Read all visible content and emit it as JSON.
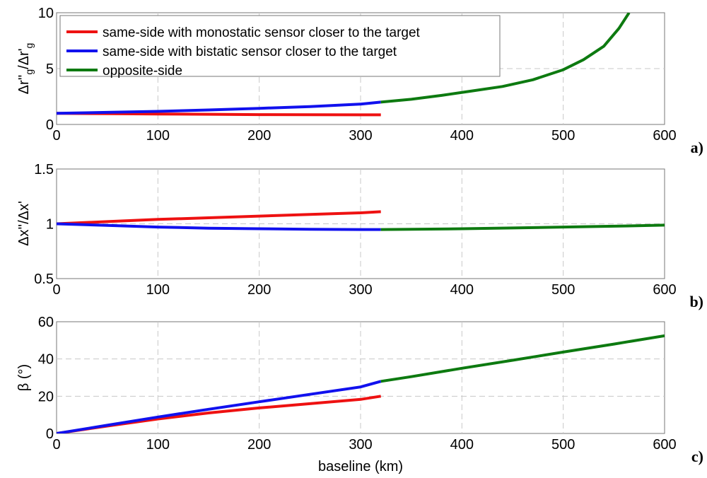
{
  "chart_data": [
    {
      "type": "line",
      "panel_label": "a)",
      "ylabel_parts": [
        "Δr''",
        "g",
        "/Δr'",
        "g"
      ],
      "xlim": [
        0,
        600
      ],
      "ylim": [
        0,
        10
      ],
      "xticks": [
        "0",
        "100",
        "200",
        "300",
        "400",
        "500",
        "600"
      ],
      "yticks": [
        "0",
        "5",
        "10"
      ],
      "grid": true,
      "legend": {
        "placement": "top-left",
        "entries": [
          {
            "label": "same-side with monostatic sensor closer to the target",
            "color": "#ee1111"
          },
          {
            "label": "same-side with bistatic sensor closer to the target",
            "color": "#1111ee"
          },
          {
            "label": "opposite-side",
            "color": "#0d7a10"
          }
        ]
      },
      "series": [
        {
          "name": "same-side with monostatic sensor closer to the target",
          "color": "#ee1111",
          "x": [
            0,
            50,
            100,
            150,
            200,
            250,
            300,
            320
          ],
          "y": [
            1.0,
            0.96,
            0.93,
            0.91,
            0.88,
            0.87,
            0.86,
            0.86
          ]
        },
        {
          "name": "same-side with bistatic sensor closer to the target",
          "color": "#1111ee",
          "x": [
            0,
            50,
            100,
            150,
            200,
            250,
            300,
            320
          ],
          "y": [
            1.0,
            1.08,
            1.17,
            1.3,
            1.44,
            1.6,
            1.82,
            2.0
          ]
        },
        {
          "name": "opposite-side",
          "color": "#0d7a10",
          "x": [
            320,
            350,
            380,
            410,
            440,
            470,
            500,
            520,
            540,
            555,
            565
          ],
          "y": [
            2.0,
            2.25,
            2.6,
            3.0,
            3.4,
            4.0,
            4.9,
            5.8,
            7.0,
            8.6,
            10.0
          ]
        }
      ]
    },
    {
      "type": "line",
      "panel_label": "b)",
      "ylabel": "Δx''/Δx'",
      "xlim": [
        0,
        600
      ],
      "ylim": [
        0.5,
        1.5
      ],
      "xticks": [
        "0",
        "100",
        "200",
        "300",
        "400",
        "500",
        "600"
      ],
      "yticks": [
        "0.5",
        "1",
        "1.5"
      ],
      "grid": true,
      "series": [
        {
          "name": "same-side with monostatic sensor closer to the target",
          "color": "#ee1111",
          "x": [
            0,
            50,
            100,
            150,
            200,
            250,
            300,
            320
          ],
          "y": [
            1.0,
            1.02,
            1.04,
            1.055,
            1.07,
            1.085,
            1.1,
            1.11
          ]
        },
        {
          "name": "same-side with bistatic sensor closer to the target",
          "color": "#1111ee",
          "x": [
            0,
            50,
            100,
            150,
            200,
            250,
            300,
            320
          ],
          "y": [
            1.0,
            0.985,
            0.97,
            0.96,
            0.955,
            0.95,
            0.948,
            0.948
          ]
        },
        {
          "name": "opposite-side",
          "color": "#0d7a10",
          "x": [
            320,
            350,
            400,
            450,
            500,
            550,
            600
          ],
          "y": [
            0.948,
            0.95,
            0.955,
            0.962,
            0.97,
            0.978,
            0.988
          ]
        }
      ]
    },
    {
      "type": "line",
      "panel_label": "c)",
      "ylabel": "β (°)",
      "xlabel": "baseline (km)",
      "xlim": [
        0,
        600
      ],
      "ylim": [
        0,
        60
      ],
      "xticks": [
        "0",
        "100",
        "200",
        "300",
        "400",
        "500",
        "600"
      ],
      "yticks": [
        "0",
        "20",
        "40",
        "60"
      ],
      "grid": true,
      "series": [
        {
          "name": "same-side with monostatic sensor closer to the target",
          "color": "#ee1111",
          "x": [
            0,
            50,
            100,
            150,
            200,
            250,
            300,
            320
          ],
          "y": [
            0,
            4.0,
            7.8,
            11.0,
            13.7,
            16.0,
            18.3,
            20.0
          ]
        },
        {
          "name": "same-side with bistatic sensor closer to the target",
          "color": "#1111ee",
          "x": [
            0,
            50,
            100,
            150,
            200,
            250,
            300,
            320
          ],
          "y": [
            0,
            4.4,
            8.8,
            13.0,
            17.0,
            21.0,
            25.0,
            28.0
          ]
        },
        {
          "name": "opposite-side",
          "color": "#0d7a10",
          "x": [
            320,
            350,
            400,
            450,
            500,
            550,
            600
          ],
          "y": [
            28.0,
            30.5,
            35.0,
            39.3,
            43.7,
            48.0,
            52.5
          ]
        }
      ]
    }
  ]
}
